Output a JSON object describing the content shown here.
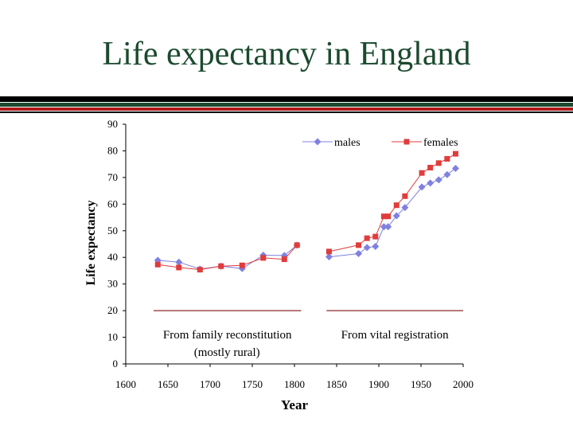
{
  "slide": {
    "title": "Life expectancy in England"
  },
  "colors": {
    "title": "#1b4a2e",
    "males": "#8080e0",
    "females": "#e03c3c",
    "line": "#8b2a2a"
  },
  "chart_data": {
    "type": "line",
    "title": "",
    "xlabel": "Year",
    "ylabel": "Life expectancy",
    "xlim": [
      1600,
      2000
    ],
    "ylim": [
      0,
      90
    ],
    "x_ticks": [
      1600,
      1650,
      1700,
      1750,
      1800,
      1850,
      1900,
      1950,
      2000
    ],
    "y_ticks": [
      0,
      10,
      20,
      30,
      40,
      50,
      60,
      70,
      80,
      90
    ],
    "grid": false,
    "legend": "top-right",
    "series": [
      {
        "name": "males",
        "marker": "diamond",
        "segments": [
          [
            [
              1638,
              38.9
            ],
            [
              1663,
              38.2
            ],
            [
              1688,
              35.6
            ],
            [
              1713,
              36.7
            ],
            [
              1738,
              35.8
            ],
            [
              1763,
              40.8
            ],
            [
              1788,
              40.7
            ],
            [
              1803,
              44.6
            ]
          ],
          [
            [
              1841,
              40.2
            ],
            [
              1876,
              41.4
            ],
            [
              1886,
              43.7
            ],
            [
              1896,
              44.1
            ],
            [
              1906,
              51.5
            ],
            [
              1911,
              51.5
            ],
            [
              1921,
              55.6
            ],
            [
              1931,
              58.7
            ],
            [
              1951,
              66.4
            ],
            [
              1961,
              67.9
            ],
            [
              1971,
              69.1
            ],
            [
              1981,
              71.1
            ],
            [
              1991,
              73.4
            ]
          ]
        ]
      },
      {
        "name": "females",
        "marker": "square",
        "segments": [
          [
            [
              1638,
              37.3
            ],
            [
              1663,
              36.2
            ],
            [
              1688,
              35.4
            ],
            [
              1713,
              36.7
            ],
            [
              1738,
              37.0
            ],
            [
              1763,
              39.8
            ],
            [
              1788,
              39.3
            ],
            [
              1803,
              44.6
            ]
          ],
          [
            [
              1841,
              42.2
            ],
            [
              1876,
              44.6
            ],
            [
              1886,
              47.2
            ],
            [
              1896,
              47.8
            ],
            [
              1906,
              55.4
            ],
            [
              1911,
              55.4
            ],
            [
              1921,
              59.6
            ],
            [
              1931,
              63.0
            ],
            [
              1951,
              71.7
            ],
            [
              1961,
              73.7
            ],
            [
              1971,
              75.4
            ],
            [
              1981,
              77.0
            ],
            [
              1991,
              78.9
            ]
          ]
        ]
      }
    ],
    "annotations": [
      {
        "text": "From family reconstitution",
        "x_range": [
          1633,
          1808
        ],
        "y": 20
      },
      {
        "text": "(mostly rural)",
        "x": 1720,
        "y": 4.5
      },
      {
        "text": "From vital registration",
        "x_range": [
          1838,
          2000
        ],
        "y": 20
      }
    ]
  }
}
